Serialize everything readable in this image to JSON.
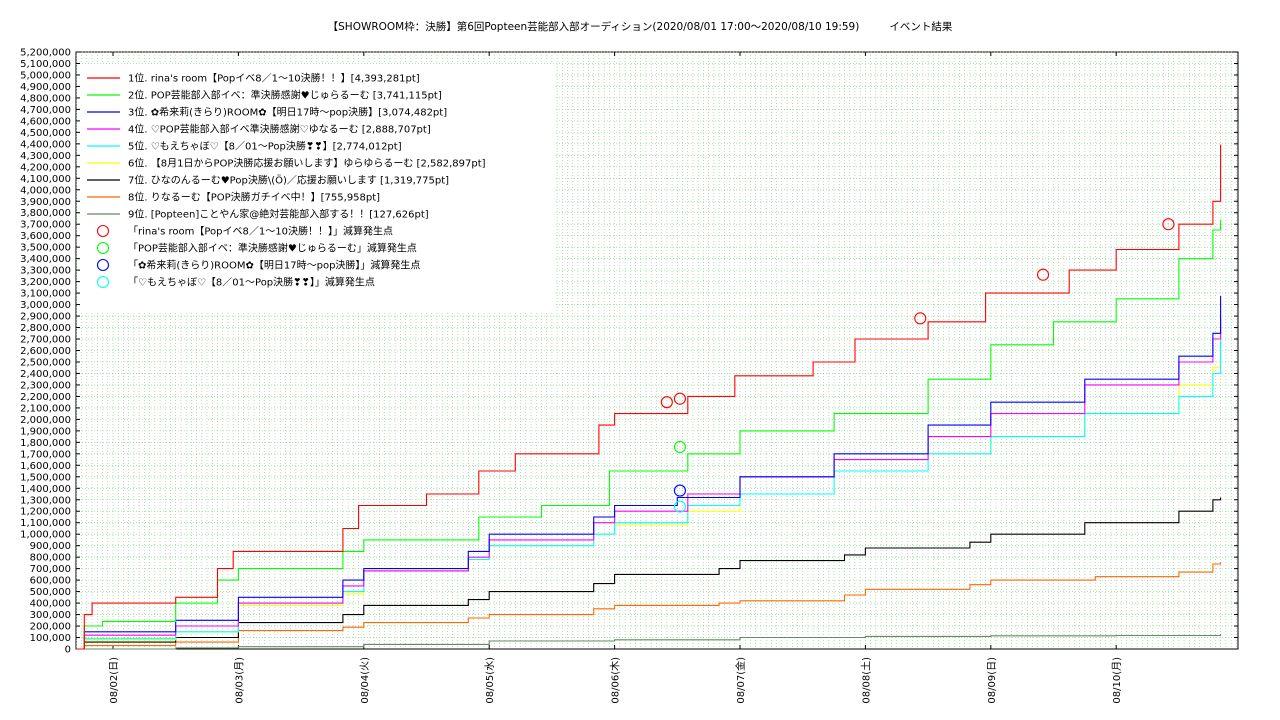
{
  "chart_data": {
    "type": "line",
    "title": "【SHOWROOM枠：決勝】第6回Popteen芸能部入部オーディション(2020/08/01 17:00～2020/08/10 19:59)",
    "subtitle": "イベント結果",
    "x_start": "2020-08-01 17:00",
    "x_end": "2020-08-10 19:59",
    "x_ticks": [
      "08/02(日)",
      "08/03(月)",
      "08/04(火)",
      "08/05(水)",
      "08/06(木)",
      "08/07(金)",
      "08/08(土)",
      "08/09(日)",
      "08/10(月)"
    ],
    "ylim": [
      0,
      5200000
    ],
    "y_ticks": [
      "0",
      "100,000",
      "200,000",
      "300,000",
      "400,000",
      "500,000",
      "600,000",
      "700,000",
      "800,000",
      "900,000",
      "1,000,000",
      "1,100,000",
      "1,200,000",
      "1,300,000",
      "1,400,000",
      "1,500,000",
      "1,600,000",
      "1,700,000",
      "1,800,000",
      "1,900,000",
      "2,000,000",
      "2,100,000",
      "2,200,000",
      "2,300,000",
      "2,400,000",
      "2,500,000",
      "2,600,000",
      "2,700,000",
      "2,800,000",
      "2,900,000",
      "3,000,000",
      "3,100,000",
      "3,200,000",
      "3,300,000",
      "3,400,000",
      "3,500,000",
      "3,600,000",
      "3,700,000",
      "3,800,000",
      "3,900,000",
      "4,000,000",
      "4,100,000",
      "4,200,000",
      "4,300,000",
      "4,400,000",
      "4,500,000",
      "4,600,000",
      "4,700,000",
      "4,800,000",
      "4,900,000",
      "5,000,000",
      "5,100,000",
      "5,200,000"
    ],
    "grid": true,
    "legend_position": "top-left",
    "series": [
      {
        "name": "1位. rina's room【Popイベ8／1～10決勝！！】[4,393,281pt]",
        "color": "#ff0000",
        "points": [
          [
            "2020-08-01 17:00",
            0
          ],
          [
            "2020-08-01 18:30",
            300000
          ],
          [
            "2020-08-01 20:00",
            400000
          ],
          [
            "2020-08-02 12:00",
            450000
          ],
          [
            "2020-08-02 20:00",
            700000
          ],
          [
            "2020-08-02 23:00",
            850000
          ],
          [
            "2020-08-03 20:00",
            1050000
          ],
          [
            "2020-08-03 23:00",
            1250000
          ],
          [
            "2020-08-04 12:00",
            1350000
          ],
          [
            "2020-08-04 22:00",
            1550000
          ],
          [
            "2020-08-05 05:00",
            1700000
          ],
          [
            "2020-08-05 21:00",
            1950000
          ],
          [
            "2020-08-06 00:00",
            2050000
          ],
          [
            "2020-08-06 14:00",
            2200000
          ],
          [
            "2020-08-06 23:00",
            2380000
          ],
          [
            "2020-08-07 14:00",
            2500000
          ],
          [
            "2020-08-07 22:00",
            2700000
          ],
          [
            "2020-08-08 12:00",
            2850000
          ],
          [
            "2020-08-08 23:00",
            3100000
          ],
          [
            "2020-08-09 15:00",
            3300000
          ],
          [
            "2020-08-10 00:00",
            3480000
          ],
          [
            "2020-08-10 12:00",
            3700000
          ],
          [
            "2020-08-10 18:30",
            3900000
          ],
          [
            "2020-08-10 19:59",
            4393281
          ]
        ]
      },
      {
        "name": "2位. POP芸能部入部イベ：準決勝感謝♥じゅらるーむ [3,741,115pt]",
        "color": "#00ff00",
        "points": [
          [
            "2020-08-01 17:00",
            0
          ],
          [
            "2020-08-01 18:30",
            200000
          ],
          [
            "2020-08-01 22:00",
            240000
          ],
          [
            "2020-08-02 12:00",
            400000
          ],
          [
            "2020-08-02 20:00",
            600000
          ],
          [
            "2020-08-03 00:00",
            700000
          ],
          [
            "2020-08-03 20:00",
            850000
          ],
          [
            "2020-08-04 00:00",
            950000
          ],
          [
            "2020-08-04 22:00",
            1150000
          ],
          [
            "2020-08-05 10:00",
            1250000
          ],
          [
            "2020-08-05 23:00",
            1550000
          ],
          [
            "2020-08-06 14:00",
            1700000
          ],
          [
            "2020-08-07 00:00",
            1900000
          ],
          [
            "2020-08-07 18:00",
            2050000
          ],
          [
            "2020-08-08 12:00",
            2350000
          ],
          [
            "2020-08-09 00:00",
            2650000
          ],
          [
            "2020-08-09 12:00",
            2850000
          ],
          [
            "2020-08-10 00:00",
            3050000
          ],
          [
            "2020-08-10 12:00",
            3400000
          ],
          [
            "2020-08-10 18:30",
            3650000
          ],
          [
            "2020-08-10 19:59",
            3741115
          ]
        ]
      },
      {
        "name": "3位. ✿希来莉(きらり)ROOM✿【明日17時～pop決勝】[3,074,482pt]",
        "color": "#0000ff",
        "points": [
          [
            "2020-08-01 17:00",
            0
          ],
          [
            "2020-08-01 18:30",
            150000
          ],
          [
            "2020-08-02 12:00",
            250000
          ],
          [
            "2020-08-03 00:00",
            450000
          ],
          [
            "2020-08-03 20:00",
            600000
          ],
          [
            "2020-08-04 00:00",
            700000
          ],
          [
            "2020-08-04 20:00",
            850000
          ],
          [
            "2020-08-05 00:00",
            1000000
          ],
          [
            "2020-08-05 20:00",
            1150000
          ],
          [
            "2020-08-06 00:00",
            1250000
          ],
          [
            "2020-08-06 12:00",
            1320000
          ],
          [
            "2020-08-07 00:00",
            1500000
          ],
          [
            "2020-08-07 18:00",
            1700000
          ],
          [
            "2020-08-08 12:00",
            1950000
          ],
          [
            "2020-08-09 00:00",
            2150000
          ],
          [
            "2020-08-09 18:00",
            2350000
          ],
          [
            "2020-08-10 12:00",
            2550000
          ],
          [
            "2020-08-10 18:30",
            2750000
          ],
          [
            "2020-08-10 19:59",
            3074482
          ]
        ]
      },
      {
        "name": "4位. ♡POP芸能部入部イベ準決勝感謝♡ゆなるーむ [2,888,707pt]",
        "color": "#ff00ff",
        "points": [
          [
            "2020-08-01 17:00",
            0
          ],
          [
            "2020-08-01 18:30",
            120000
          ],
          [
            "2020-08-02 12:00",
            200000
          ],
          [
            "2020-08-03 00:00",
            400000
          ],
          [
            "2020-08-03 20:00",
            550000
          ],
          [
            "2020-08-04 00:00",
            680000
          ],
          [
            "2020-08-04 20:00",
            800000
          ],
          [
            "2020-08-05 00:00",
            950000
          ],
          [
            "2020-08-05 20:00",
            1100000
          ],
          [
            "2020-08-06 00:00",
            1200000
          ],
          [
            "2020-08-06 14:00",
            1350000
          ],
          [
            "2020-08-07 00:00",
            1500000
          ],
          [
            "2020-08-07 18:00",
            1650000
          ],
          [
            "2020-08-08 12:00",
            1850000
          ],
          [
            "2020-08-09 00:00",
            2050000
          ],
          [
            "2020-08-09 18:00",
            2300000
          ],
          [
            "2020-08-10 12:00",
            2500000
          ],
          [
            "2020-08-10 18:30",
            2700000
          ],
          [
            "2020-08-10 19:59",
            2888707
          ]
        ]
      },
      {
        "name": "5位. ♡もえちゃぼ♡【8／01～Pop決勝❣❣】[2,774,012pt]",
        "color": "#00ffff",
        "points": [
          [
            "2020-08-01 17:00",
            0
          ],
          [
            "2020-08-01 18:30",
            90000
          ],
          [
            "2020-08-02 12:00",
            150000
          ],
          [
            "2020-08-03 00:00",
            400000
          ],
          [
            "2020-08-03 20:00",
            500000
          ],
          [
            "2020-08-04 00:00",
            680000
          ],
          [
            "2020-08-04 20:00",
            780000
          ],
          [
            "2020-08-05 00:00",
            900000
          ],
          [
            "2020-08-05 20:00",
            1000000
          ],
          [
            "2020-08-06 00:00",
            1100000
          ],
          [
            "2020-08-06 14:00",
            1250000
          ],
          [
            "2020-08-07 00:00",
            1350000
          ],
          [
            "2020-08-07 18:00",
            1550000
          ],
          [
            "2020-08-08 12:00",
            1700000
          ],
          [
            "2020-08-09 00:00",
            1850000
          ],
          [
            "2020-08-09 18:00",
            2050000
          ],
          [
            "2020-08-10 12:00",
            2200000
          ],
          [
            "2020-08-10 18:30",
            2400000
          ],
          [
            "2020-08-10 19:59",
            2774012
          ]
        ]
      },
      {
        "name": "6位. 【8月1日からPOP決勝応援お願いします】ゆらゆらるーむ [2,582,897pt]",
        "color": "#ffff00",
        "points": [
          [
            "2020-08-01 17:00",
            0
          ],
          [
            "2020-08-01 18:30",
            80000
          ],
          [
            "2020-08-02 12:00",
            150000
          ],
          [
            "2020-08-03 00:00",
            380000
          ],
          [
            "2020-08-03 20:00",
            480000
          ],
          [
            "2020-08-04 00:00",
            680000
          ],
          [
            "2020-08-04 20:00",
            780000
          ],
          [
            "2020-08-05 00:00",
            900000
          ],
          [
            "2020-08-05 20:00",
            1000000
          ],
          [
            "2020-08-06 00:00",
            1080000
          ],
          [
            "2020-08-06 14:00",
            1200000
          ],
          [
            "2020-08-07 00:00",
            1350000
          ],
          [
            "2020-08-07 18:00",
            1550000
          ],
          [
            "2020-08-08 12:00",
            1700000
          ],
          [
            "2020-08-09 00:00",
            1850000
          ],
          [
            "2020-08-09 18:00",
            2050000
          ],
          [
            "2020-08-10 12:00",
            2300000
          ],
          [
            "2020-08-10 18:30",
            2450000
          ],
          [
            "2020-08-10 19:59",
            2582897
          ]
        ]
      },
      {
        "name": "7位. ひなのんるーむ♥Pop決勝\\(Ö)／応援お願いします [1,319,775pt]",
        "color": "#000000",
        "points": [
          [
            "2020-08-01 17:00",
            0
          ],
          [
            "2020-08-01 18:30",
            60000
          ],
          [
            "2020-08-02 12:00",
            100000
          ],
          [
            "2020-08-03 00:00",
            230000
          ],
          [
            "2020-08-03 20:00",
            300000
          ],
          [
            "2020-08-04 00:00",
            380000
          ],
          [
            "2020-08-04 20:00",
            430000
          ],
          [
            "2020-08-05 00:00",
            500000
          ],
          [
            "2020-08-05 20:00",
            570000
          ],
          [
            "2020-08-06 00:00",
            650000
          ],
          [
            "2020-08-06 20:00",
            700000
          ],
          [
            "2020-08-07 00:00",
            770000
          ],
          [
            "2020-08-07 20:00",
            820000
          ],
          [
            "2020-08-08 00:00",
            880000
          ],
          [
            "2020-08-08 20:00",
            930000
          ],
          [
            "2020-08-09 00:00",
            1000000
          ],
          [
            "2020-08-09 18:00",
            1100000
          ],
          [
            "2020-08-10 12:00",
            1200000
          ],
          [
            "2020-08-10 18:30",
            1300000
          ],
          [
            "2020-08-10 19:59",
            1319775
          ]
        ]
      },
      {
        "name": "8位. りなるーむ【POP決勝ガチイベ中！】[755,958pt]",
        "color": "#ff6600",
        "points": [
          [
            "2020-08-01 17:00",
            0
          ],
          [
            "2020-08-01 18:30",
            30000
          ],
          [
            "2020-08-02 12:00",
            60000
          ],
          [
            "2020-08-03 00:00",
            160000
          ],
          [
            "2020-08-03 20:00",
            190000
          ],
          [
            "2020-08-04 00:00",
            230000
          ],
          [
            "2020-08-04 20:00",
            270000
          ],
          [
            "2020-08-05 00:00",
            300000
          ],
          [
            "2020-08-05 20:00",
            350000
          ],
          [
            "2020-08-06 00:00",
            380000
          ],
          [
            "2020-08-06 20:00",
            400000
          ],
          [
            "2020-08-07 00:00",
            420000
          ],
          [
            "2020-08-07 20:00",
            470000
          ],
          [
            "2020-08-08 00:00",
            520000
          ],
          [
            "2020-08-08 20:00",
            560000
          ],
          [
            "2020-08-09 00:00",
            600000
          ],
          [
            "2020-08-09 20:00",
            630000
          ],
          [
            "2020-08-10 12:00",
            670000
          ],
          [
            "2020-08-10 18:30",
            740000
          ],
          [
            "2020-08-10 19:59",
            755958
          ]
        ]
      },
      {
        "name": "9位. [Popteen]ことやん家@絶対芸能部入部する！！[127,626pt]",
        "color": "#668866",
        "points": [
          [
            "2020-08-01 17:00",
            0
          ],
          [
            "2020-08-02 12:00",
            10000
          ],
          [
            "2020-08-03 00:00",
            20000
          ],
          [
            "2020-08-04 00:00",
            40000
          ],
          [
            "2020-08-05 00:00",
            70000
          ],
          [
            "2020-08-06 00:00",
            80000
          ],
          [
            "2020-08-07 00:00",
            100000
          ],
          [
            "2020-08-08 00:00",
            110000
          ],
          [
            "2020-08-09 00:00",
            115000
          ],
          [
            "2020-08-10 00:00",
            118000
          ],
          [
            "2020-08-10 19:59",
            127626
          ]
        ]
      }
    ],
    "markers": [
      {
        "name": "「rina's room【Popイベ8／1～10決勝！！】」減算発生点",
        "color": "#ff0000",
        "points": [
          [
            "2020-08-06 10:00",
            2150000
          ],
          [
            "2020-08-06 12:30",
            2180000
          ],
          [
            "2020-08-08 10:30",
            2880000
          ],
          [
            "2020-08-09 10:00",
            3260000
          ],
          [
            "2020-08-10 10:00",
            3700000
          ]
        ]
      },
      {
        "name": "「POP芸能部入部イベ：準決勝感謝♥じゅらるーむ」減算発生点",
        "color": "#00ff00",
        "points": [
          [
            "2020-08-06 12:30",
            1760000
          ]
        ]
      },
      {
        "name": "「✿希来莉(きらり)ROOM✿【明日17時～pop決勝】」減算発生点",
        "color": "#0000ff",
        "points": [
          [
            "2020-08-06 12:30",
            1380000
          ]
        ]
      },
      {
        "name": "「♡もえちゃぼ♡【8／01～Pop決勝❣❣】」減算発生点",
        "color": "#00ffff",
        "points": [
          [
            "2020-08-06 12:30",
            1240000
          ]
        ]
      }
    ]
  }
}
